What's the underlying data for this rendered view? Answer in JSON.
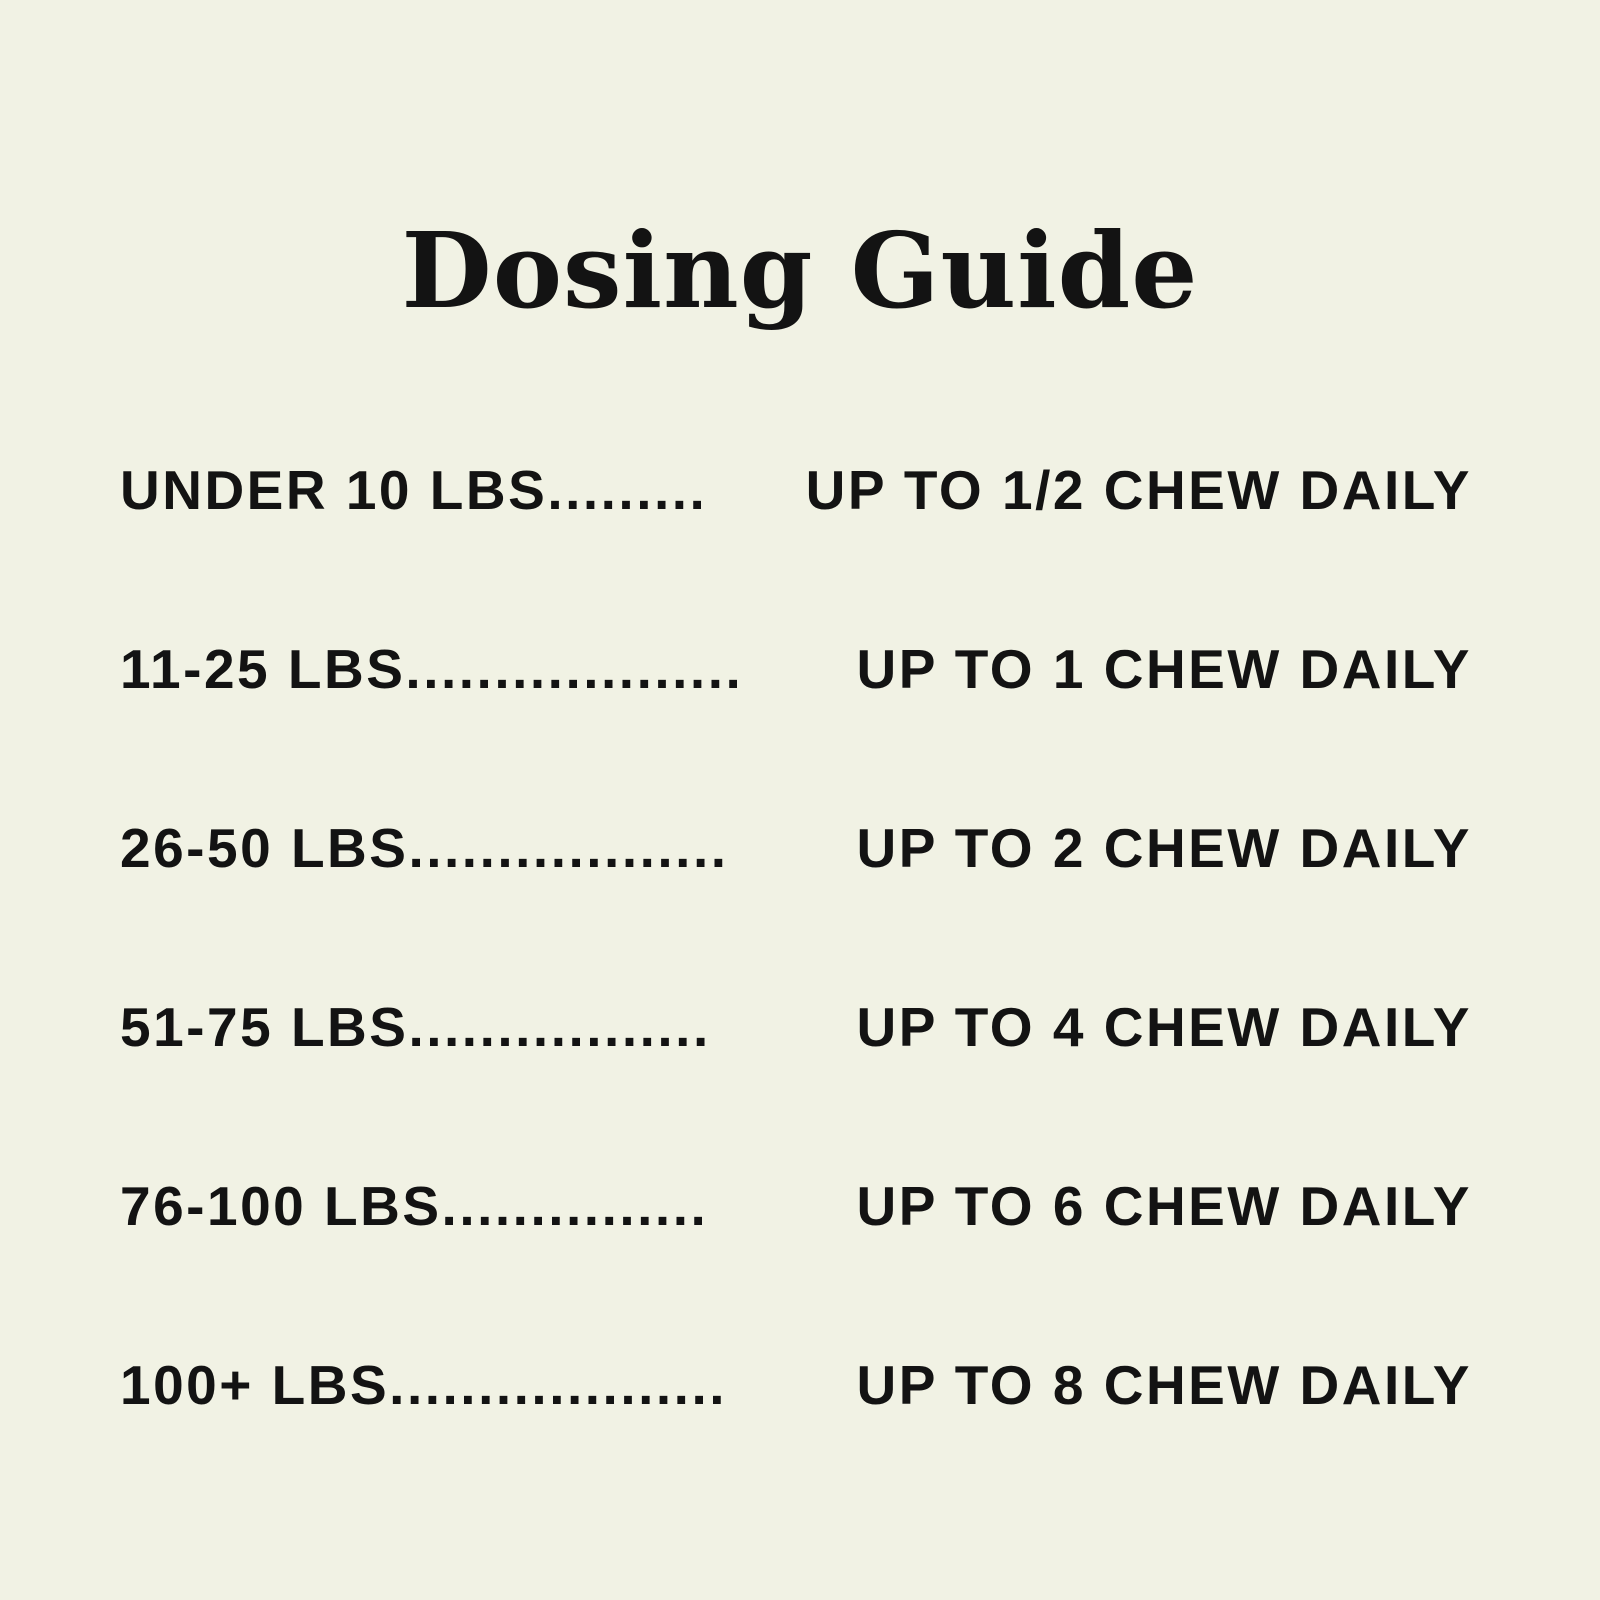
{
  "page": {
    "background_color": "#f1f2e4",
    "text_color": "#131313"
  },
  "title": "Dosing Guide",
  "rows": [
    {
      "range": "UNDER 10 LBS",
      "dots": ".........",
      "dose": "UP TO 1/2 CHEW DAILY"
    },
    {
      "range": "11-25 LBS",
      "dots": "...................",
      "dose": "UP TO 1 CHEW DAILY"
    },
    {
      "range": "26-50 LBS",
      "dots": "..................",
      "dose": "UP TO 2 CHEW DAILY"
    },
    {
      "range": "51-75 LBS",
      "dots": "................. ",
      "dose": "UP TO 4 CHEW DAILY"
    },
    {
      "range": "76-100 LBS",
      "dots": "............... ",
      "dose": "UP TO 6 CHEW DAILY"
    },
    {
      "range": "100+ LBS",
      "dots": "...................",
      "dose": "UP TO 8 CHEW DAILY"
    }
  ]
}
